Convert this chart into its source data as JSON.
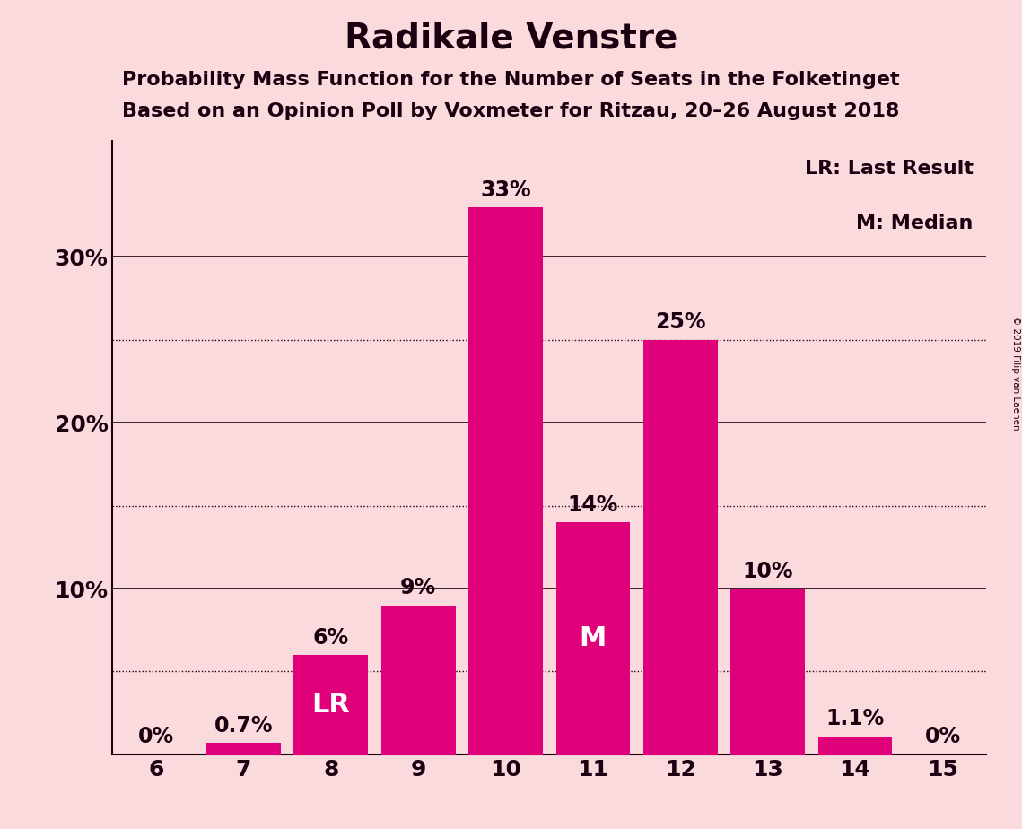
{
  "title": "Radikale Venstre",
  "subtitle1": "Probability Mass Function for the Number of Seats in the Folketinget",
  "subtitle2": "Based on an Opinion Poll by Voxmeter for Ritzau, 20–26 August 2018",
  "seats": [
    6,
    7,
    8,
    9,
    10,
    11,
    12,
    13,
    14,
    15
  ],
  "probabilities": [
    0.0,
    0.7,
    6.0,
    9.0,
    33.0,
    14.0,
    25.0,
    10.0,
    1.1,
    0.0
  ],
  "bar_color": "#E0007A",
  "background_color": "#FADADD",
  "label_color_dark": "#1a0010",
  "label_color_light": "#FFFFFF",
  "bar_labels": [
    "0%",
    "0.7%",
    "6%",
    "9%",
    "33%",
    "14%",
    "25%",
    "10%",
    "1.1%",
    "0%"
  ],
  "lr_seat": 8,
  "median_seat": 11,
  "lr_label": "LR",
  "median_label": "M",
  "legend_lr": "LR: Last Result",
  "legend_m": "M: Median",
  "yticks": [
    10,
    20,
    30
  ],
  "ytick_labels": [
    "10%",
    "20%",
    "30%"
  ],
  "dotted_yticks": [
    5,
    15,
    25
  ],
  "ylim": [
    0,
    37
  ],
  "copyright_text": "© 2019 Filip van Laenen",
  "axis_color": "#1a0010",
  "title_fontsize": 28,
  "subtitle_fontsize": 16,
  "tick_fontsize": 18,
  "bar_label_fontsize": 17,
  "legend_fontsize": 16,
  "inline_label_fontsize": 22
}
